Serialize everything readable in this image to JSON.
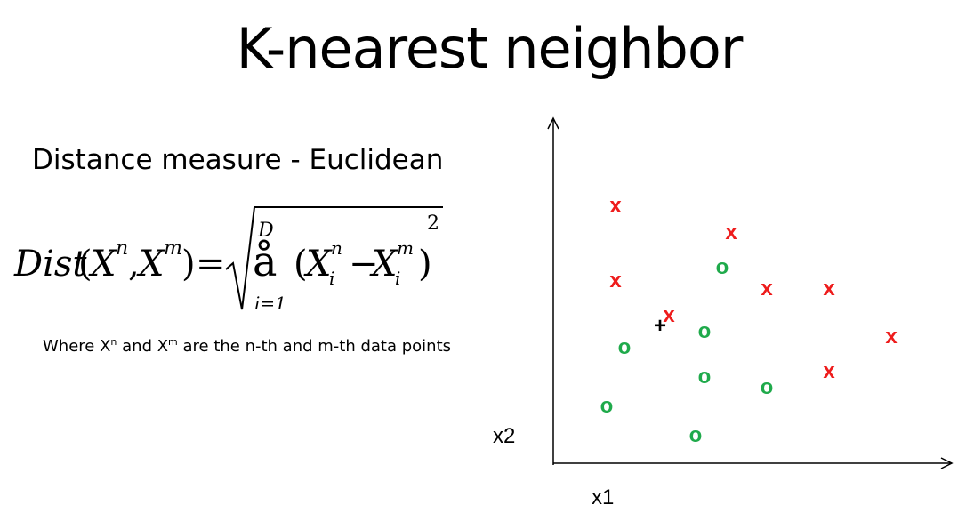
{
  "title": "K-nearest neighbor",
  "subtitle": "Distance measure - Euclidean",
  "formula": {
    "lhs_fn": "Dist",
    "lhs_open": "(",
    "X1": "X",
    "sup_n": "n",
    "comma": ",",
    "X2": "X",
    "sup_m": "m",
    "lhs_close": ")",
    "equals": "=",
    "sum_upper": "D",
    "sum_symbol": "å",
    "sum_lower": "i=1",
    "open": "(",
    "Xi_n": "X",
    "sub_i1": "i",
    "sup_n2": "n",
    "minus": "−",
    "Xi_m": "X",
    "sub_i2": "i",
    "sup_m2": "m",
    "close": ")",
    "power": "2"
  },
  "note": {
    "prefix": "Where X",
    "sup_n": "n",
    "mid": " and X",
    "sup_m": "m",
    "suffix": " are the n-th and m-th data points"
  },
  "colors": {
    "class_x": "#ee1c1c",
    "class_o": "#1faa4b",
    "query": "#000000",
    "axis": "#000000"
  },
  "chart_data": {
    "type": "scatter",
    "xlabel": "x1",
    "ylabel": "x2",
    "grid": false,
    "series": [
      {
        "marker": "x",
        "color": "#ee1c1c",
        "points": [
          [
            70,
            94
          ],
          [
            200,
            84
          ],
          [
            70,
            66
          ],
          [
            240,
            63
          ],
          [
            310,
            63
          ],
          [
            130,
            53
          ],
          [
            380,
            45
          ],
          [
            310,
            32
          ]
        ]
      },
      {
        "marker": "o",
        "color": "#1faa4b",
        "points": [
          [
            190,
            71
          ],
          [
            170,
            47
          ],
          [
            80,
            41
          ],
          [
            170,
            30
          ],
          [
            240,
            26
          ],
          [
            60,
            19
          ],
          [
            160,
            8
          ]
        ]
      },
      {
        "marker": "+",
        "color": "#000000",
        "points": [
          [
            120,
            49
          ]
        ]
      }
    ]
  }
}
